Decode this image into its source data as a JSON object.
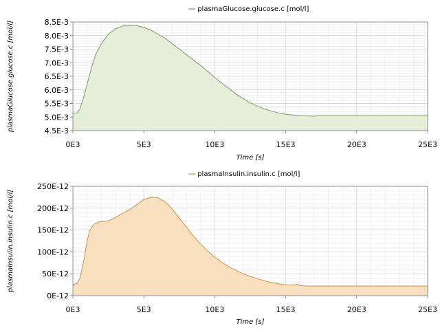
{
  "chart_data": [
    {
      "type": "area",
      "title": "",
      "legend": {
        "placement": "top-center",
        "entries": [
          "plasmaGlucose.glucose.c [mol/l]"
        ]
      },
      "xlabel": "Time [s]",
      "ylabel": "plasmaGlucose.glucose.c [mol/l]",
      "xlim": [
        0,
        25000
      ],
      "ylim": [
        0.0045,
        0.0085
      ],
      "x_ticks": [
        0,
        5000,
        10000,
        15000,
        20000,
        25000
      ],
      "x_tick_labels": [
        "0E3",
        "5E3",
        "10E3",
        "15E3",
        "20E3",
        "25E3"
      ],
      "y_ticks": [
        0.0045,
        0.005,
        0.0055,
        0.006,
        0.0065,
        0.007,
        0.0075,
        0.008,
        0.0085
      ],
      "y_tick_labels": [
        "4.5E-3",
        "5.0E-3",
        "5.5E-3",
        "6.0E-3",
        "6.5E-3",
        "7.0E-3",
        "7.5E-3",
        "8.0E-3",
        "8.5E-3"
      ],
      "grid": true,
      "colors": {
        "line": "#7a9a5e",
        "fill": "#e6eed9",
        "legend_line": "#7a9a5e"
      },
      "series": [
        {
          "name": "plasmaGlucose.glucose.c [mol/l]",
          "x": [
            0,
            300,
            500,
            800,
            1000,
            1300,
            1600,
            2000,
            2500,
            3000,
            3500,
            4000,
            4500,
            5000,
            5500,
            6000,
            6500,
            7000,
            7500,
            8000,
            8500,
            9000,
            9500,
            10000,
            10500,
            11000,
            11500,
            12000,
            12500,
            13000,
            13500,
            14000,
            14500,
            15000,
            16000,
            17000,
            17200,
            18000,
            19000,
            19500,
            20000,
            21000,
            22000,
            23000,
            24000,
            25000
          ],
          "y": [
            0.00513,
            0.00516,
            0.0053,
            0.0058,
            0.0062,
            0.0068,
            0.0073,
            0.0077,
            0.00805,
            0.00825,
            0.00835,
            0.00838,
            0.00836,
            0.0083,
            0.0082,
            0.00805,
            0.0079,
            0.0077,
            0.0075,
            0.0073,
            0.0071,
            0.0069,
            0.00668,
            0.00645,
            0.00625,
            0.00605,
            0.00585,
            0.00568,
            0.00552,
            0.0054,
            0.0053,
            0.00522,
            0.00515,
            0.0051,
            0.00505,
            0.00503,
            0.00505,
            0.00505,
            0.00505,
            0.00505,
            0.00505,
            0.00505,
            0.00505,
            0.00505,
            0.00505,
            0.00505
          ]
        }
      ]
    },
    {
      "type": "area",
      "title": "",
      "legend": {
        "placement": "top-center",
        "entries": [
          "plasmaInsulin.insulin.c [mol/l]"
        ]
      },
      "xlabel": "Time [s]",
      "ylabel": "plasmaInsulin.insulin.c [mol/l]",
      "xlim": [
        0,
        25000
      ],
      "ylim": [
        0,
        2.5e-10
      ],
      "x_ticks": [
        0,
        5000,
        10000,
        15000,
        20000,
        25000
      ],
      "x_tick_labels": [
        "0E3",
        "5E3",
        "10E3",
        "15E3",
        "20E3",
        "25E3"
      ],
      "y_ticks": [
        0,
        5e-11,
        1e-10,
        1.5e-10,
        2e-10,
        2.5e-10
      ],
      "y_tick_labels": [
        "0E-12",
        "50E-12",
        "100E-12",
        "150E-12",
        "200E-12",
        "250E-12"
      ],
      "grid": true,
      "colors": {
        "line": "#d1913a",
        "fill": "#f7dfbf",
        "legend_line": "#d1913a"
      },
      "series": [
        {
          "name": "plasmaInsulin.insulin.c [mol/l]",
          "x": [
            0,
            300,
            500,
            800,
            1000,
            1200,
            1500,
            1800,
            2000,
            2500,
            3000,
            3500,
            4000,
            4500,
            5000,
            5500,
            6000,
            6500,
            7000,
            7500,
            8000,
            8500,
            9000,
            9500,
            10000,
            10500,
            11000,
            11500,
            12000,
            12500,
            13000,
            13500,
            14000,
            14500,
            15000,
            15500,
            15800,
            16000,
            16500,
            17000,
            18000,
            20000,
            22000,
            25000
          ],
          "y": [
            2.5e-11,
            2.8e-11,
            4e-11,
            8.5e-11,
            1.25e-10,
            1.5e-10,
            1.63e-10,
            1.68e-10,
            1.69e-10,
            1.71e-10,
            1.79e-10,
            1.88e-10,
            1.97e-10,
            2.08e-10,
            2.2e-10,
            2.25e-10,
            2.24e-10,
            2.15e-10,
            1.98e-10,
            1.77e-10,
            1.57e-10,
            1.36e-10,
            1.18e-10,
            1.02e-10,
            8.8e-11,
            7.6e-11,
            6.6e-11,
            5.8e-11,
            5e-11,
            4.4e-11,
            3.9e-11,
            3.4e-11,
            3e-11,
            2.7e-11,
            2.5e-11,
            2.4e-11,
            2.6e-11,
            2.3e-11,
            2.2e-11,
            2.2e-11,
            2.2e-11,
            2.2e-11,
            2.2e-11,
            2.2e-11
          ]
        }
      ]
    }
  ]
}
